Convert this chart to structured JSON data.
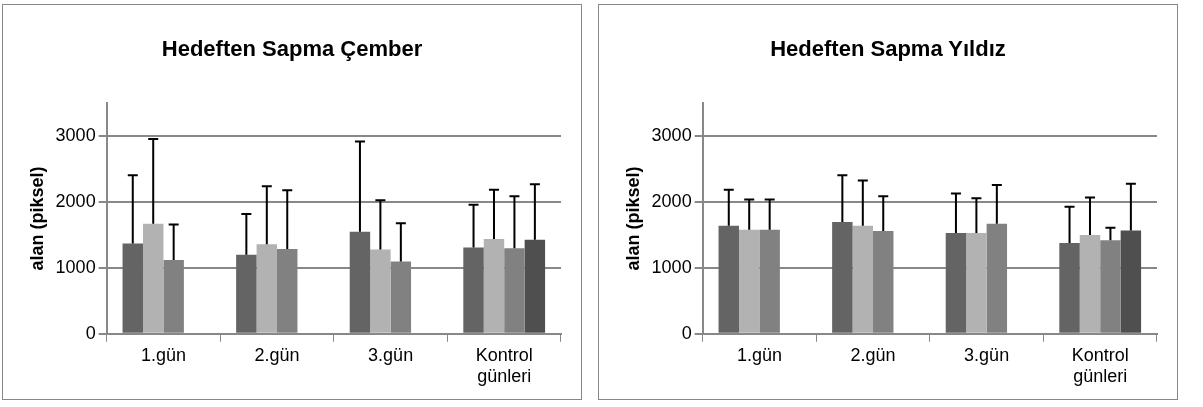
{
  "chart_data": [
    {
      "type": "bar",
      "title": "Hedeften Sapma Çember",
      "ylabel": "alan (piksel)",
      "categories": [
        "1.gün",
        "2.gün",
        "3.gün",
        "Kontrol günleri"
      ],
      "ylim": [
        0,
        3500
      ],
      "yticks": [
        0,
        1000,
        2000,
        3000
      ],
      "grid": "y",
      "legend": false,
      "series": [
        {
          "color": "#646464",
          "values": [
            1370,
            1200,
            1550,
            1310
          ],
          "errors": [
            [
              1370,
              2410
            ],
            [
              1200,
              1820
            ],
            [
              1550,
              2920
            ],
            [
              1310,
              1960
            ]
          ]
        },
        {
          "color": "#b2b2b2",
          "values": [
            1670,
            1360,
            1280,
            1440
          ],
          "errors": [
            [
              1670,
              2960
            ],
            [
              1360,
              2240
            ],
            [
              1280,
              2030
            ],
            [
              1440,
              2190
            ]
          ]
        },
        {
          "color": "#818181",
          "values": [
            1120,
            1290,
            1100,
            1300
          ],
          "errors": [
            [
              1120,
              1660
            ],
            [
              1290,
              2180
            ],
            [
              1100,
              1680
            ],
            [
              1300,
              2090
            ]
          ]
        },
        {
          "color": "#4f4f4f",
          "values": [
            null,
            null,
            null,
            1430
          ],
          "errors": [
            null,
            null,
            null,
            [
              1430,
              2270
            ]
          ]
        }
      ]
    },
    {
      "type": "bar",
      "title": "Hedeften Sapma Yıldız",
      "ylabel": "alan (piksel)",
      "categories": [
        "1.gün",
        "2.gün",
        "3.gün",
        "Kontrol günleri"
      ],
      "ylim": [
        0,
        3500
      ],
      "yticks": [
        0,
        1000,
        2000,
        3000
      ],
      "grid": "y",
      "legend": false,
      "series": [
        {
          "color": "#646464",
          "values": [
            1640,
            1700,
            1530,
            1380
          ],
          "errors": [
            [
              1640,
              2190
            ],
            [
              1700,
              2410
            ],
            [
              1530,
              2130
            ],
            [
              1380,
              1930
            ]
          ]
        },
        {
          "color": "#b2b2b2",
          "values": [
            1580,
            1640,
            1530,
            1500
          ],
          "errors": [
            [
              1580,
              2040
            ],
            [
              1640,
              2330
            ],
            [
              1530,
              2060
            ],
            [
              1500,
              2070
            ]
          ]
        },
        {
          "color": "#818181",
          "values": [
            1580,
            1560,
            1670,
            1420
          ],
          "errors": [
            [
              1580,
              2040
            ],
            [
              1560,
              2090
            ],
            [
              1670,
              2260
            ],
            [
              1420,
              1610
            ]
          ]
        },
        {
          "color": "#4f4f4f",
          "values": [
            null,
            null,
            null,
            1570
          ],
          "errors": [
            null,
            null,
            null,
            [
              1570,
              2280
            ]
          ]
        }
      ]
    }
  ]
}
